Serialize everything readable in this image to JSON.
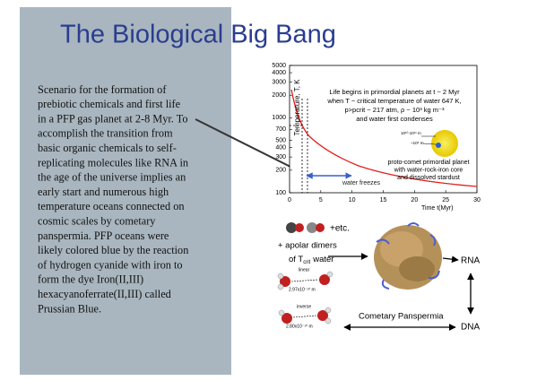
{
  "title": "The Biological Big Bang",
  "body_lines": [
    "Scenario for the formation of",
    "prebiotic chemicals and first life",
    "in a PFP gas planet at 2-8 Myr. To",
    "accomplish the transition from",
    "basic organic chemicals to self-",
    "replicating molecules like RNA in",
    "the age of the universe implies an",
    "early start and numerous high",
    "temperature oceans connected on",
    "cosmic scales by cometary",
    "panspermia. PFP oceans were",
    "likely colored blue by the reaction",
    "of hydrogen cyanide with iron to",
    "form the dye Iron(II,III)",
    "hexacyanoferrate(II,III) called",
    "Prussian Blue."
  ],
  "figure": {
    "y_label": "Temperature, T, K",
    "x_label": "Time t(Myr)",
    "yticks": [
      5000,
      4000,
      3000,
      2000,
      1000,
      700,
      500,
      400,
      300,
      200,
      100
    ],
    "xticks": [
      0,
      5,
      10,
      15,
      20,
      25,
      30
    ],
    "annotation": [
      "Life begins in primordial planets at t ~ 2 Myr",
      "when T ~ critical temperature of water 647 K,",
      "p>pcrit ~ 217 atm, ρ ~ 10³ kg m⁻³",
      "and water first condenses"
    ],
    "planet_sizes": [
      "10¹⁰-10¹¹ m",
      "~10⁶ m"
    ],
    "planet_note": [
      "proto-comet primordial planet",
      "with water-rock-iron core",
      "and dissolved stardust"
    ],
    "freeze_label": "water freezes"
  },
  "diagram": {
    "etc": "+etc.",
    "apolar_1": "+ apolar dimers",
    "apolar_2": "of T",
    "apolar_sub": "crit",
    "apolar_3": "water",
    "linear": "linear",
    "linear_size": "2.97x10⁻¹⁰ m",
    "inverse": "inverse",
    "inverse_size": "2.80x10⁻¹⁰ m",
    "rna": "RNA",
    "dna": "DNA",
    "panspermia": "Cometary Panspermia"
  }
}
